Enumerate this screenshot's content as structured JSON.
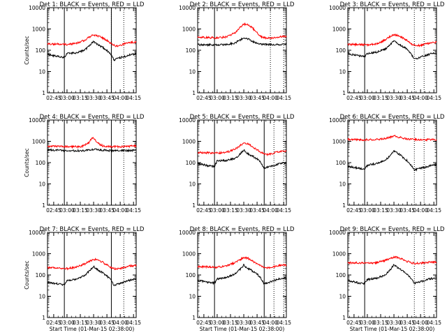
{
  "chart_data": [
    {
      "type": "line",
      "title": "Det  1: BLACK = Events, RED = LLD",
      "ylabel": "Counts/sec",
      "xlabel": "",
      "yscale": "log",
      "ylim": [
        1,
        10000
      ],
      "yticks": [
        "1",
        "10",
        "100",
        "1000",
        "10000"
      ],
      "xticks": [
        "02:45",
        "03:00",
        "03:15",
        "03:30",
        "03:45",
        "04:00",
        "04:15"
      ],
      "xlim": [
        "02:38",
        "04:18"
      ],
      "solid_markers": [
        "02:57",
        "03:50"
      ],
      "dotted_markers": [
        "03:50",
        "04:04"
      ],
      "series": [
        {
          "color": "#ff0000",
          "x": [
            "02:38",
            "02:50",
            "03:00",
            "03:10",
            "03:20",
            "03:25",
            "03:30",
            "03:35",
            "03:40",
            "03:45",
            "03:50",
            "03:55",
            "04:00",
            "04:05",
            "04:10",
            "04:18"
          ],
          "y": [
            200,
            195,
            190,
            210,
            300,
            420,
            520,
            470,
            380,
            290,
            200,
            160,
            170,
            200,
            230,
            250
          ]
        },
        {
          "color": "#000000",
          "x": [
            "02:38",
            "02:45",
            "02:50",
            "02:57",
            "03:00",
            "03:10",
            "03:20",
            "03:25",
            "03:30",
            "03:33",
            "03:37",
            "03:40",
            "03:45",
            "03:50",
            "03:53",
            "04:00",
            "04:05",
            "04:10",
            "04:18"
          ],
          "y": [
            65,
            55,
            50,
            45,
            70,
            75,
            100,
            160,
            260,
            200,
            160,
            140,
            100,
            60,
            35,
            45,
            50,
            60,
            70
          ]
        }
      ]
    },
    {
      "type": "line",
      "title": "Det  2: BLACK = Events, RED = LLD",
      "ylabel": "",
      "xlabel": "",
      "yscale": "log",
      "ylim": [
        1,
        10000
      ],
      "yticks": [
        "1",
        "10",
        "100",
        "1000",
        "10000"
      ],
      "xticks": [
        "02:45",
        "03:00",
        "03:15",
        "03:30",
        "03:45",
        "04:00",
        "04:15"
      ],
      "xlim": [
        "02:38",
        "04:18"
      ],
      "solid_markers": [
        "02:57"
      ],
      "dotted_markers": [
        "04:00",
        "04:15"
      ],
      "series": [
        {
          "color": "#ff0000",
          "x": [
            "02:38",
            "02:50",
            "03:00",
            "03:10",
            "03:20",
            "03:25",
            "03:30",
            "03:35",
            "03:40",
            "03:45",
            "03:50",
            "03:55",
            "04:00",
            "04:05",
            "04:10",
            "04:18"
          ],
          "y": [
            420,
            400,
            380,
            420,
            650,
            1100,
            1700,
            1600,
            1100,
            650,
            420,
            380,
            380,
            400,
            420,
            460
          ]
        },
        {
          "color": "#000000",
          "x": [
            "02:38",
            "02:50",
            "03:00",
            "03:10",
            "03:20",
            "03:25",
            "03:30",
            "03:35",
            "03:40",
            "03:45",
            "03:50",
            "04:00",
            "04:10",
            "04:18"
          ],
          "y": [
            180,
            180,
            180,
            185,
            220,
            290,
            380,
            340,
            260,
            210,
            190,
            185,
            185,
            190
          ]
        }
      ]
    },
    {
      "type": "line",
      "title": "Det  3: BLACK = Events, RED = LLD",
      "ylabel": "",
      "xlabel": "",
      "yscale": "log",
      "ylim": [
        1,
        10000
      ],
      "yticks": [
        "1",
        "10",
        "100",
        "1000",
        "10000"
      ],
      "xticks": [
        "02:45",
        "03:00",
        "03:15",
        "03:30",
        "03:45",
        "04:00",
        "04:15"
      ],
      "xlim": [
        "02:38",
        "04:18"
      ],
      "solid_markers": [
        "02:57"
      ],
      "dotted_markers": [
        "03:53",
        "04:04"
      ],
      "series": [
        {
          "color": "#ff0000",
          "x": [
            "02:38",
            "02:50",
            "03:00",
            "03:10",
            "03:20",
            "03:25",
            "03:30",
            "03:35",
            "03:40",
            "03:45",
            "03:50",
            "03:55",
            "04:00",
            "04:05",
            "04:10",
            "04:18"
          ],
          "y": [
            190,
            185,
            180,
            200,
            300,
            420,
            540,
            480,
            380,
            280,
            190,
            160,
            170,
            190,
            220,
            240
          ]
        },
        {
          "color": "#000000",
          "x": [
            "02:38",
            "02:45",
            "02:50",
            "02:57",
            "03:00",
            "03:10",
            "03:20",
            "03:25",
            "03:30",
            "03:33",
            "03:37",
            "03:40",
            "03:45",
            "03:50",
            "03:53",
            "04:00",
            "04:05",
            "04:10",
            "04:18"
          ],
          "y": [
            70,
            60,
            55,
            50,
            70,
            80,
            110,
            170,
            280,
            220,
            170,
            150,
            110,
            60,
            38,
            48,
            55,
            65,
            75
          ]
        }
      ]
    },
    {
      "type": "line",
      "title": "Det  4: BLACK = Events, RED = LLD",
      "ylabel": "Counts/sec",
      "xlabel": "",
      "yscale": "log",
      "ylim": [
        1,
        10000
      ],
      "yticks": [
        "1",
        "10",
        "100",
        "1000",
        "10000"
      ],
      "xticks": [
        "02:45",
        "03:00",
        "03:15",
        "03:30",
        "03:45",
        "04:00",
        "04:15"
      ],
      "xlim": [
        "02:38",
        "04:18"
      ],
      "solid_markers": [
        "02:57",
        "03:50"
      ],
      "dotted_markers": [
        "04:04"
      ],
      "series": [
        {
          "color": "#ff0000",
          "x": [
            "02:38",
            "02:50",
            "03:00",
            "03:15",
            "03:20",
            "03:25",
            "03:28",
            "03:31",
            "03:35",
            "03:40",
            "03:50",
            "04:00",
            "04:10",
            "04:18"
          ],
          "y": [
            600,
            580,
            560,
            560,
            650,
            900,
            1500,
            1300,
            800,
            620,
            560,
            560,
            580,
            600
          ]
        },
        {
          "color": "#000000",
          "x": [
            "02:38",
            "02:50",
            "03:00",
            "03:15",
            "03:25",
            "03:30",
            "03:35",
            "03:50",
            "04:00",
            "04:10",
            "04:18"
          ],
          "y": [
            400,
            380,
            360,
            360,
            380,
            420,
            400,
            360,
            360,
            370,
            380
          ]
        }
      ]
    },
    {
      "type": "line",
      "title": "Det  5: BLACK = Events, RED = LLD",
      "ylabel": "",
      "xlabel": "",
      "yscale": "log",
      "ylim": [
        1,
        10000
      ],
      "yticks": [
        "1",
        "10",
        "100",
        "1000",
        "10000"
      ],
      "xticks": [
        "02:45",
        "03:00",
        "03:15",
        "03:30",
        "03:45",
        "04:00",
        "04:15"
      ],
      "xlim": [
        "02:38",
        "04:18"
      ],
      "solid_markers": [
        "02:57",
        "03:53"
      ],
      "dotted_markers": [
        "04:04",
        "04:15"
      ],
      "series": [
        {
          "color": "#ff0000",
          "x": [
            "02:38",
            "02:50",
            "03:00",
            "03:10",
            "03:20",
            "03:25",
            "03:30",
            "03:35",
            "03:40",
            "03:45",
            "03:50",
            "03:55",
            "04:00",
            "04:05",
            "04:10",
            "04:18"
          ],
          "y": [
            300,
            290,
            280,
            300,
            420,
            600,
            850,
            750,
            550,
            400,
            300,
            240,
            250,
            290,
            330,
            360
          ]
        },
        {
          "color": "#000000",
          "x": [
            "02:38",
            "02:45",
            "02:50",
            "02:57",
            "03:00",
            "03:10",
            "03:20",
            "03:25",
            "03:30",
            "03:33",
            "03:37",
            "03:40",
            "03:45",
            "03:50",
            "03:53",
            "04:00",
            "04:05",
            "04:10",
            "04:18"
          ],
          "y": [
            90,
            80,
            70,
            65,
            120,
            125,
            160,
            230,
            380,
            300,
            230,
            200,
            150,
            90,
            55,
            65,
            75,
            90,
            100
          ]
        }
      ]
    },
    {
      "type": "line",
      "title": "Det  6: BLACK = Events, RED = LLD",
      "ylabel": "",
      "xlabel": "",
      "yscale": "log",
      "ylim": [
        1,
        10000
      ],
      "yticks": [
        "1",
        "10",
        "100",
        "1000",
        "10000"
      ],
      "xticks": [
        "02:45",
        "03:00",
        "03:15",
        "03:30",
        "03:45",
        "04:00",
        "04:15"
      ],
      "xlim": [
        "02:38",
        "04:18"
      ],
      "solid_markers": [
        "02:57"
      ],
      "dotted_markers": [
        "03:53",
        "04:04"
      ],
      "series": [
        {
          "color": "#ff0000",
          "x": [
            "02:38",
            "02:50",
            "03:00",
            "03:15",
            "03:25",
            "03:30",
            "03:35",
            "03:45",
            "03:55",
            "04:05",
            "04:18"
          ],
          "y": [
            1250,
            1200,
            1180,
            1250,
            1500,
            1800,
            1600,
            1300,
            1200,
            1180,
            1220
          ]
        },
        {
          "color": "#000000",
          "x": [
            "02:38",
            "02:45",
            "02:50",
            "02:57",
            "03:00",
            "03:10",
            "03:20",
            "03:25",
            "03:30",
            "03:33",
            "03:37",
            "03:40",
            "03:45",
            "03:50",
            "03:53",
            "04:00",
            "04:05",
            "04:10",
            "04:18"
          ],
          "y": [
            65,
            60,
            55,
            50,
            75,
            90,
            130,
            200,
            350,
            300,
            230,
            180,
            120,
            70,
            45,
            55,
            60,
            70,
            80
          ]
        }
      ]
    },
    {
      "type": "line",
      "title": "Det  7: BLACK = Events, RED = LLD",
      "ylabel": "Counts/sec",
      "xlabel": "Start Time (01-Mar-15 02:38:00)",
      "yscale": "log",
      "ylim": [
        1,
        10000
      ],
      "yticks": [
        "1",
        "10",
        "100",
        "1000",
        "10000"
      ],
      "xticks": [
        "02:45",
        "03:00",
        "03:15",
        "03:30",
        "03:45",
        "04:00",
        "04:15"
      ],
      "xlim": [
        "02:38",
        "04:18"
      ],
      "solid_markers": [
        "02:57",
        "03:50"
      ],
      "dotted_markers": [
        "04:04"
      ],
      "series": [
        {
          "color": "#ff0000",
          "x": [
            "02:38",
            "02:50",
            "03:00",
            "03:10",
            "03:20",
            "03:25",
            "03:30",
            "03:35",
            "03:40",
            "03:45",
            "03:50",
            "03:55",
            "04:00",
            "04:05",
            "04:10",
            "04:18"
          ],
          "y": [
            220,
            210,
            200,
            230,
            330,
            440,
            560,
            500,
            400,
            300,
            220,
            190,
            200,
            230,
            260,
            280
          ]
        },
        {
          "color": "#000000",
          "x": [
            "02:38",
            "02:45",
            "02:50",
            "02:57",
            "03:00",
            "03:10",
            "03:20",
            "03:25",
            "03:30",
            "03:33",
            "03:37",
            "03:40",
            "03:45",
            "03:50",
            "03:53",
            "04:00",
            "04:05",
            "04:10",
            "04:18"
          ],
          "y": [
            45,
            40,
            38,
            35,
            55,
            65,
            95,
            150,
            250,
            200,
            150,
            130,
            90,
            55,
            32,
            42,
            48,
            55,
            65
          ]
        }
      ]
    },
    {
      "type": "line",
      "title": "Det  8: BLACK = Events, RED = LLD",
      "ylabel": "",
      "xlabel": "Start Time (01-Mar-15 02:38:00)",
      "yscale": "log",
      "ylim": [
        1,
        10000
      ],
      "yticks": [
        "1",
        "10",
        "100",
        "1000",
        "10000"
      ],
      "xticks": [
        "02:45",
        "03:00",
        "03:15",
        "03:30",
        "03:45",
        "04:00",
        "04:15"
      ],
      "xlim": [
        "02:38",
        "04:18"
      ],
      "solid_markers": [
        "02:57",
        "03:53"
      ],
      "dotted_markers": [
        "04:04",
        "04:15"
      ],
      "series": [
        {
          "color": "#ff0000",
          "x": [
            "02:38",
            "02:50",
            "03:00",
            "03:10",
            "03:20",
            "03:25",
            "03:30",
            "03:35",
            "03:40",
            "03:45",
            "03:50",
            "03:55",
            "04:00",
            "04:05",
            "04:10",
            "04:18"
          ],
          "y": [
            250,
            240,
            230,
            260,
            380,
            500,
            680,
            600,
            450,
            330,
            250,
            210,
            220,
            250,
            280,
            300
          ]
        },
        {
          "color": "#000000",
          "x": [
            "02:38",
            "02:45",
            "02:50",
            "02:57",
            "03:00",
            "03:10",
            "03:20",
            "03:25",
            "03:30",
            "03:33",
            "03:37",
            "03:40",
            "03:45",
            "03:50",
            "03:53",
            "04:00",
            "04:05",
            "04:10",
            "04:18"
          ],
          "y": [
            55,
            50,
            45,
            42,
            65,
            75,
            110,
            170,
            290,
            230,
            180,
            150,
            110,
            65,
            38,
            48,
            55,
            65,
            75
          ]
        }
      ]
    },
    {
      "type": "line",
      "title": "Det  9: BLACK = Events, RED = LLD",
      "ylabel": "",
      "xlabel": "Start Time (01-Mar-15 02:38:00)",
      "yscale": "log",
      "ylim": [
        1,
        10000
      ],
      "yticks": [
        "1",
        "10",
        "100",
        "1000",
        "10000"
      ],
      "xticks": [
        "02:45",
        "03:00",
        "03:15",
        "03:30",
        "03:45",
        "04:00",
        "04:15"
      ],
      "xlim": [
        "02:38",
        "04:18"
      ],
      "solid_markers": [
        "02:57"
      ],
      "dotted_markers": [
        "03:53",
        "04:04"
      ],
      "series": [
        {
          "color": "#ff0000",
          "x": [
            "02:38",
            "02:50",
            "03:00",
            "03:10",
            "03:20",
            "03:25",
            "03:30",
            "03:35",
            "03:40",
            "03:45",
            "03:50",
            "03:55",
            "04:00",
            "04:05",
            "04:10",
            "04:18"
          ],
          "y": [
            380,
            370,
            360,
            380,
            480,
            580,
            700,
            650,
            540,
            430,
            370,
            350,
            360,
            380,
            400,
            410
          ]
        },
        {
          "color": "#000000",
          "x": [
            "02:38",
            "02:45",
            "02:50",
            "02:57",
            "03:00",
            "03:10",
            "03:20",
            "03:25",
            "03:30",
            "03:33",
            "03:37",
            "03:40",
            "03:45",
            "03:50",
            "03:53",
            "04:00",
            "04:05",
            "04:10",
            "04:18"
          ],
          "y": [
            55,
            48,
            42,
            40,
            60,
            70,
            100,
            160,
            300,
            240,
            180,
            150,
            110,
            65,
            40,
            50,
            55,
            65,
            75
          ]
        }
      ]
    }
  ]
}
